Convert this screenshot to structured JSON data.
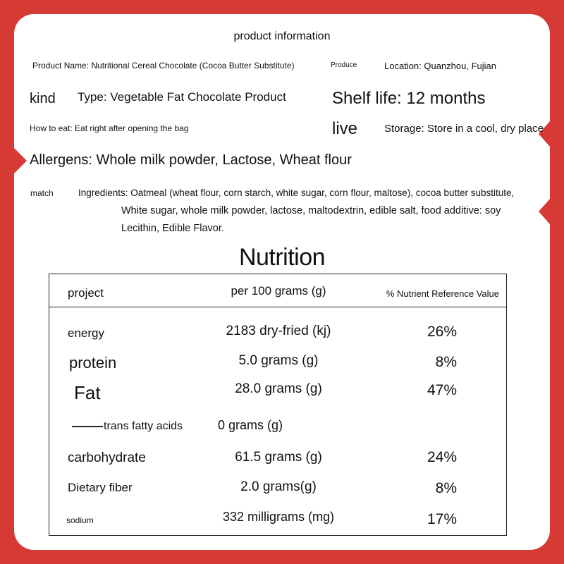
{
  "header": {
    "title": "product information"
  },
  "info": {
    "product_name": "Product Name: Nutritional Cereal Chocolate (Cocoa Butter Substitute)",
    "produce_label": "Produce",
    "location": "Location: Quanzhou, Fujian",
    "kind_label": "kind",
    "type": "Type: Vegetable Fat Chocolate Product",
    "shelf_life": "Shelf life: 12 months",
    "how_to_eat": "How to eat: Eat right after opening the bag",
    "live_label": "live",
    "storage": "Storage: Store in a cool, dry place",
    "allergens": "Allergens: Whole milk powder, Lactose, Wheat flour",
    "match_label": "match",
    "ingredients_line1": "Ingredients: Oatmeal (wheat flour, corn starch, white sugar, corn flour, maltose), cocoa butter substitute,",
    "ingredients_line2": "White sugar, whole milk powder, lactose, maltodextrin, edible salt, food additive: soy",
    "ingredients_line3": "Lecithin, Edible Flavor."
  },
  "nutrition": {
    "title": "Nutrition",
    "columns": [
      "project",
      "per 100 grams (g)",
      "% Nutrient Reference Value"
    ],
    "rows": [
      {
        "name": "energy",
        "amount": "2183 dry-fried (kj)",
        "nrv": "26%"
      },
      {
        "name": "protein",
        "amount": "5.0 grams (g)",
        "nrv": "8%"
      },
      {
        "name": "Fat",
        "amount": "28.0 grams (g)",
        "nrv": "47%"
      },
      {
        "name": "trans fatty acids",
        "amount": "0 grams (g)",
        "nrv": ""
      },
      {
        "name": "carbohydrate",
        "amount": "61.5 grams (g)",
        "nrv": "24%"
      },
      {
        "name": "Dietary fiber",
        "amount": "2.0 grams(g)",
        "nrv": "8%"
      },
      {
        "name": "sodium",
        "amount": "332 milligrams (mg)",
        "nrv": "17%"
      }
    ]
  },
  "colors": {
    "background": "#d63a35",
    "card": "#ffffff",
    "text": "#111111"
  }
}
